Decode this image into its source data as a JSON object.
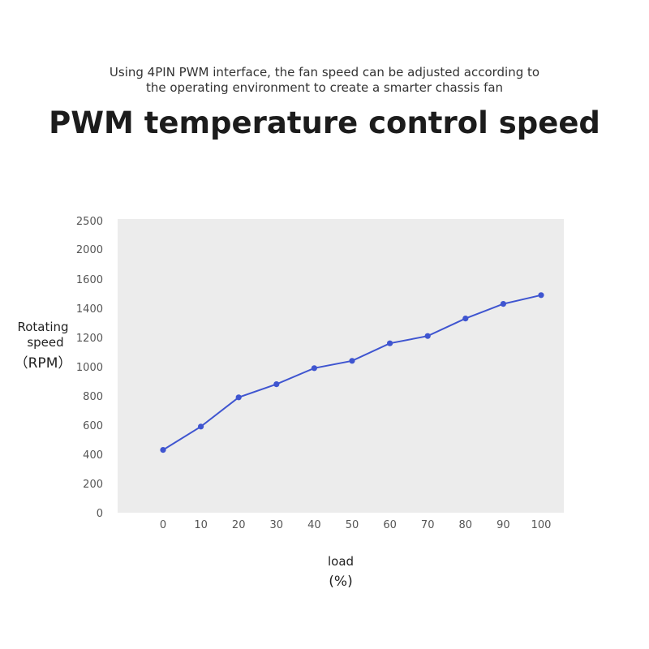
{
  "subtitle": {
    "line1": "Using 4PIN PWM interface, the fan speed can be adjusted according to",
    "line2": "the operating environment to create a smarter chassis fan"
  },
  "title": "PWM temperature control speed",
  "chart_data": {
    "type": "line",
    "x": [
      0,
      10,
      20,
      30,
      40,
      50,
      60,
      70,
      80,
      90,
      100
    ],
    "series": [
      {
        "values": [
          430,
          590,
          790,
          880,
          990,
          1040,
          1160,
          1210,
          1330,
          1430,
          1490
        ]
      }
    ],
    "x_tick_labels": [
      "0",
      "10",
      "20",
      "30",
      "40",
      "50",
      "60",
      "70",
      "80",
      "90",
      "100"
    ],
    "y_ticks": [
      0,
      200,
      400,
      600,
      800,
      1000,
      1200,
      1400,
      1600,
      2000,
      2500
    ],
    "ylabel": [
      "Rotating",
      "speed",
      "（RPM）"
    ],
    "xlabel": [
      "load",
      "(%)"
    ],
    "grid": false,
    "colors": {
      "line": "#3f55d0",
      "plot_background": "#ececec"
    }
  }
}
